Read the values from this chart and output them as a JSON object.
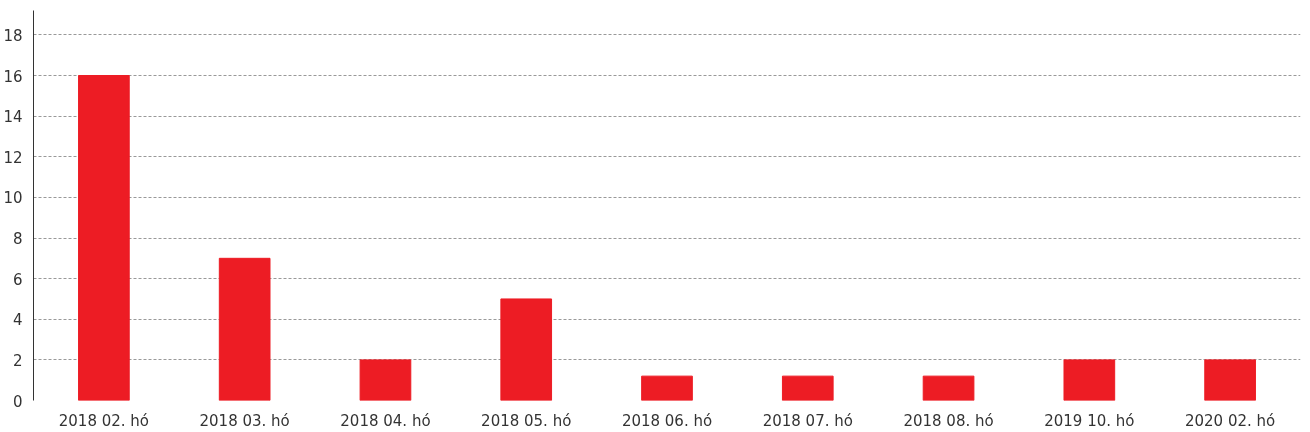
{
  "chart_data": {
    "type": "bar",
    "categories": [
      "2018 02. hó",
      "2018 03. hó",
      "2018 04. hó",
      "2018 05. hó",
      "2018 06. hó",
      "2018 07. hó",
      "2018 08. hó",
      "2019 10. hó",
      "2020 02. hó"
    ],
    "values": [
      16,
      7,
      2,
      5,
      1.2,
      1.2,
      1.2,
      2,
      2
    ],
    "color": "#ed1c24",
    "ylim": [
      0,
      19.2
    ],
    "yticks": [
      0,
      2,
      4,
      6,
      8,
      10,
      12,
      14,
      16,
      18
    ],
    "grid": "y"
  }
}
